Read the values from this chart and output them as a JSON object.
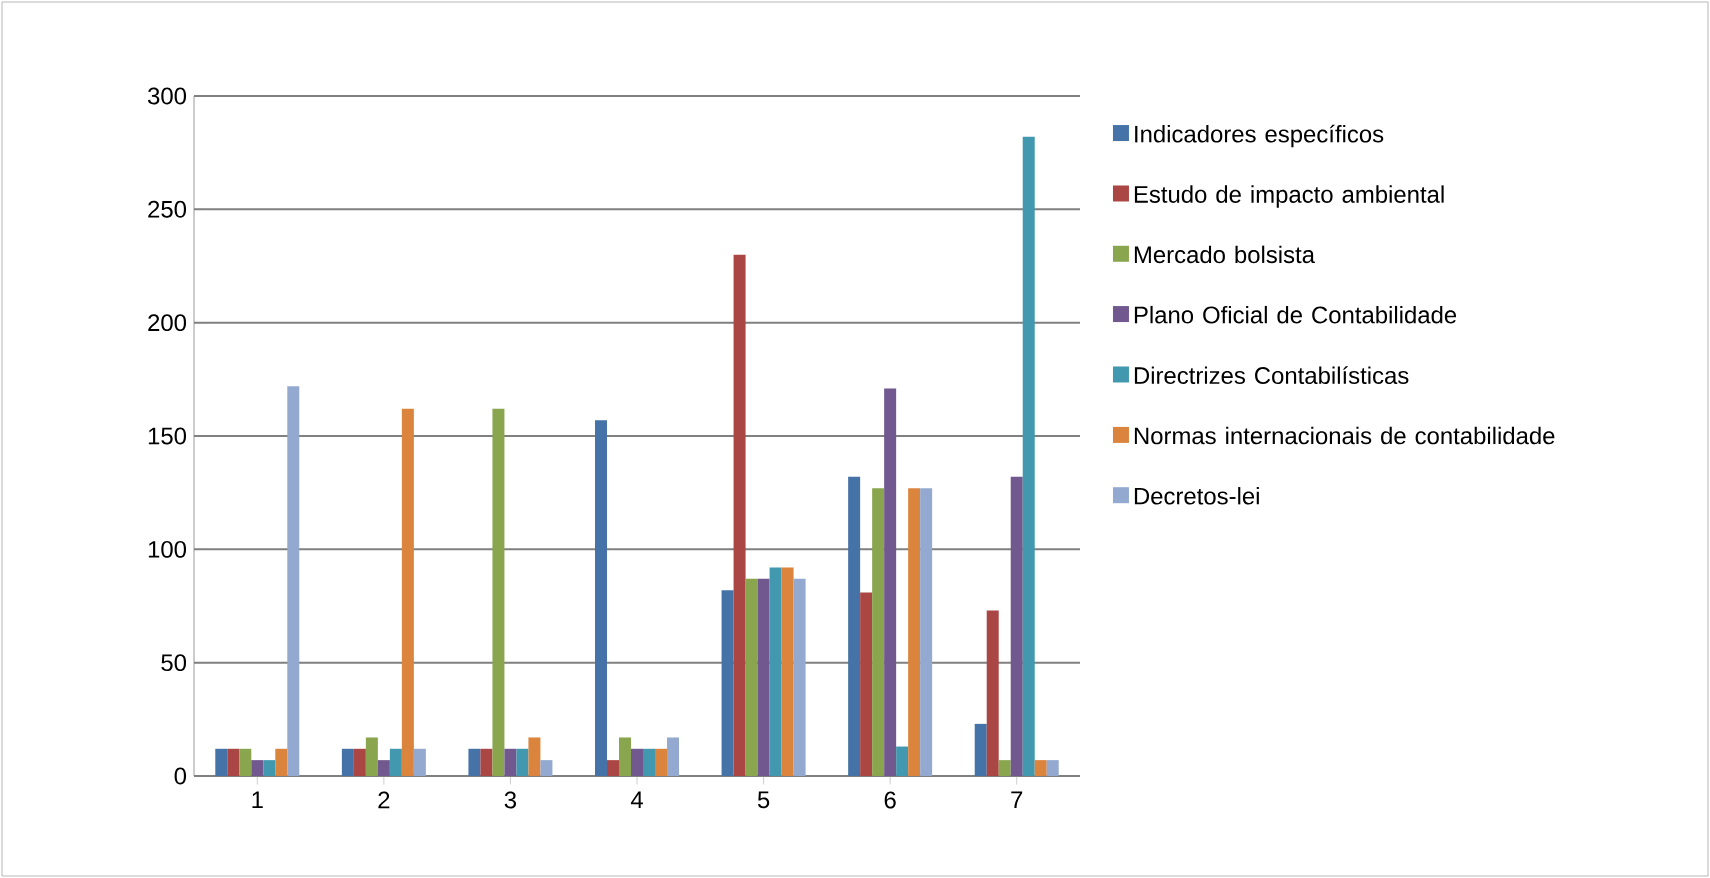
{
  "chart_data": {
    "type": "bar",
    "categories": [
      "1",
      "2",
      "3",
      "4",
      "5",
      "6",
      "7"
    ],
    "series": [
      {
        "name": "Indicadores específicos",
        "color": "#4572a7",
        "values": [
          12,
          12,
          12,
          157,
          82,
          132,
          23
        ]
      },
      {
        "name": "Estudo de impacto ambiental",
        "color": "#aa4643",
        "values": [
          12,
          12,
          12,
          7,
          230,
          81,
          73
        ]
      },
      {
        "name": "Mercado bolsista",
        "color": "#89a54e",
        "values": [
          12,
          17,
          162,
          17,
          87,
          127,
          7
        ]
      },
      {
        "name": "Plano Oficial de Contabilidade",
        "color": "#71588f",
        "values": [
          7,
          7,
          12,
          12,
          87,
          171,
          132
        ]
      },
      {
        "name": "Directrizes Contabilísticas",
        "color": "#4198af",
        "values": [
          7,
          12,
          12,
          12,
          92,
          13,
          282
        ]
      },
      {
        "name": "Normas internacionais de contabilidade",
        "color": "#db843d",
        "values": [
          12,
          162,
          17,
          12,
          92,
          127,
          7
        ]
      },
      {
        "name": "Decretos-lei",
        "color": "#93a9cf",
        "values": [
          172,
          12,
          7,
          17,
          87,
          127,
          7
        ]
      }
    ],
    "ylim": [
      0,
      300
    ],
    "yticks": [
      0,
      50,
      100,
      150,
      200,
      250,
      300
    ],
    "grid": "y",
    "legend": "right"
  }
}
